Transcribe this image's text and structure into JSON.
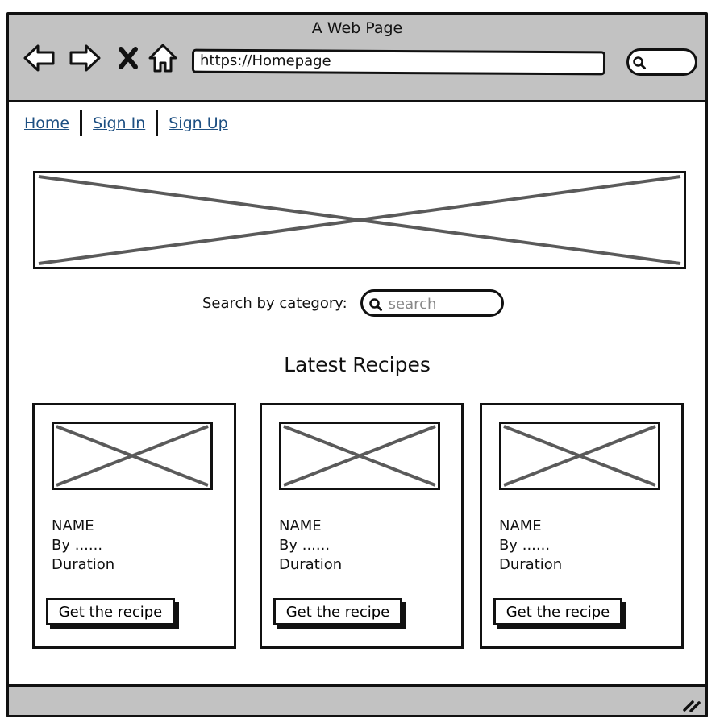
{
  "window": {
    "title": "A Web Page"
  },
  "toolbar": {
    "back_icon": "back-arrow-icon",
    "forward_icon": "forward-arrow-icon",
    "close_icon": "close-x-icon",
    "home_icon": "home-icon",
    "url": "https://Homepage",
    "search_icon": "search-icon"
  },
  "nav": {
    "links": [
      {
        "label": "Home"
      },
      {
        "label": "Sign In"
      },
      {
        "label": "Sign Up"
      }
    ]
  },
  "search": {
    "label": "Search by category:",
    "placeholder": "search"
  },
  "recipes": {
    "title": "Latest Recipes",
    "cards": [
      {
        "name": "NAME",
        "by": "By ......",
        "duration": "Duration",
        "button": "Get the recipe"
      },
      {
        "name": "NAME",
        "by": "By ......",
        "duration": "Duration",
        "button": "Get the recipe"
      },
      {
        "name": "NAME",
        "by": "By ......",
        "duration": "Duration",
        "button": "Get the recipe"
      }
    ]
  },
  "colors": {
    "chrome": "#c2c2c2",
    "link": "#1d4f82",
    "stroke": "#111111",
    "placeholder": "#5b5b5b"
  }
}
